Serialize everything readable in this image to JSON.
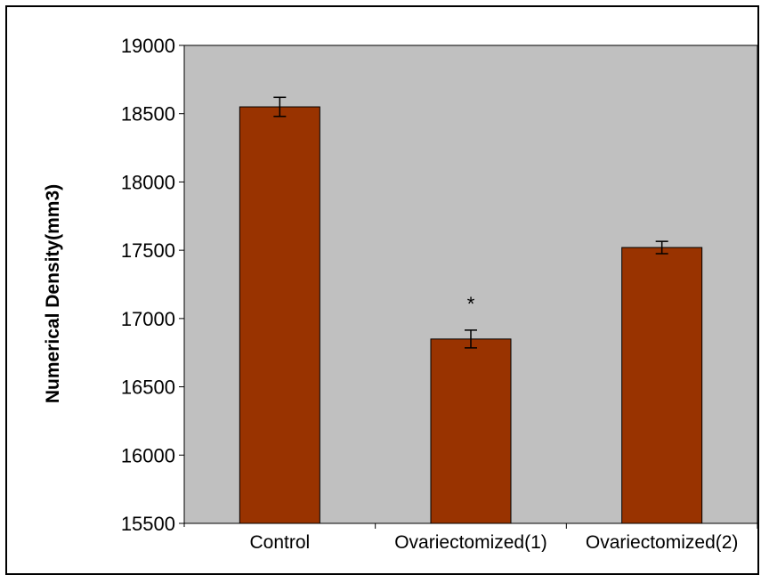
{
  "chart_data": {
    "type": "bar",
    "title": "",
    "xlabel": "",
    "ylabel": "Numerical Density(mm3)",
    "categories": [
      "Control",
      "Ovariectomized(1)",
      "Ovariectomized(2)"
    ],
    "values": [
      18550,
      16850,
      17520
    ],
    "errors": [
      70,
      65,
      45
    ],
    "annotations": [
      {
        "category": "Ovariectomized(1)",
        "text": "*"
      }
    ],
    "ylim": [
      15500,
      19000
    ],
    "yticks": [
      15500,
      16000,
      16500,
      17000,
      17500,
      18000,
      18500,
      19000
    ],
    "grid": false,
    "legend": "none",
    "colors": {
      "bar": "#993300",
      "plot_bg": "#c0c0c0",
      "text": "#000000"
    }
  }
}
